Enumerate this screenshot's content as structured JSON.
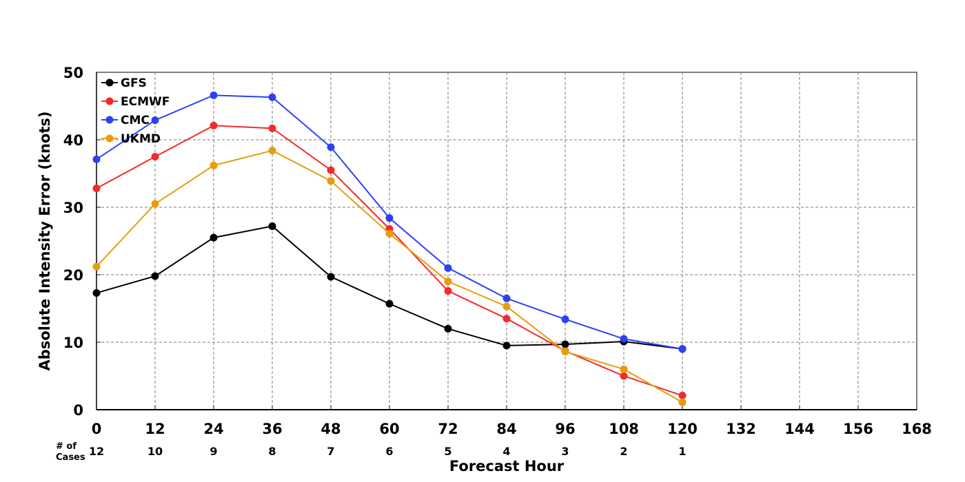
{
  "chart_data": {
    "type": "line",
    "title": "",
    "xlabel": "Forecast Hour",
    "ylabel": "Absolute Intensity Error (knots)",
    "xlim": [
      0,
      168
    ],
    "ylim": [
      0,
      50
    ],
    "x_ticks": [
      0,
      12,
      24,
      36,
      48,
      60,
      72,
      84,
      96,
      108,
      120,
      132,
      144,
      156,
      168
    ],
    "y_ticks": [
      0,
      10,
      20,
      30,
      40,
      50
    ],
    "grid": true,
    "legend_position": "top-left",
    "cases_label_line1": "# of",
    "cases_label_line2": "Cases",
    "cases": {
      "x": [
        0,
        12,
        24,
        36,
        48,
        60,
        72,
        84,
        96,
        108,
        120
      ],
      "counts": [
        12,
        10,
        9,
        8,
        7,
        6,
        5,
        4,
        3,
        2,
        1
      ]
    },
    "series": [
      {
        "name": "GFS",
        "color": "#000000",
        "x": [
          0,
          12,
          24,
          36,
          48,
          60,
          72,
          84,
          96,
          108,
          120
        ],
        "values": [
          17.3,
          19.8,
          25.5,
          27.2,
          19.7,
          15.7,
          12.0,
          9.5,
          9.7,
          10.1,
          9.0
        ]
      },
      {
        "name": "ECMWF",
        "color": "#f52a2a",
        "x": [
          0,
          12,
          24,
          36,
          48,
          60,
          72,
          84,
          96,
          108,
          120
        ],
        "values": [
          32.8,
          37.5,
          42.1,
          41.7,
          35.5,
          26.8,
          17.6,
          13.5,
          8.7,
          5.0,
          2.1
        ]
      },
      {
        "name": "CMC",
        "color": "#2b41f5",
        "x": [
          0,
          12,
          24,
          36,
          48,
          60,
          72,
          84,
          96,
          108,
          120
        ],
        "values": [
          37.1,
          42.9,
          46.6,
          46.3,
          38.9,
          28.4,
          21.0,
          16.5,
          13.4,
          10.5,
          9.0
        ]
      },
      {
        "name": "UKMD",
        "color": "#e89c0d",
        "x": [
          0,
          12,
          24,
          36,
          48,
          60,
          72,
          84,
          96,
          108,
          120
        ],
        "values": [
          21.2,
          30.5,
          36.2,
          38.4,
          33.9,
          26.1,
          19.0,
          15.3,
          8.6,
          6.0,
          1.1
        ]
      }
    ]
  }
}
